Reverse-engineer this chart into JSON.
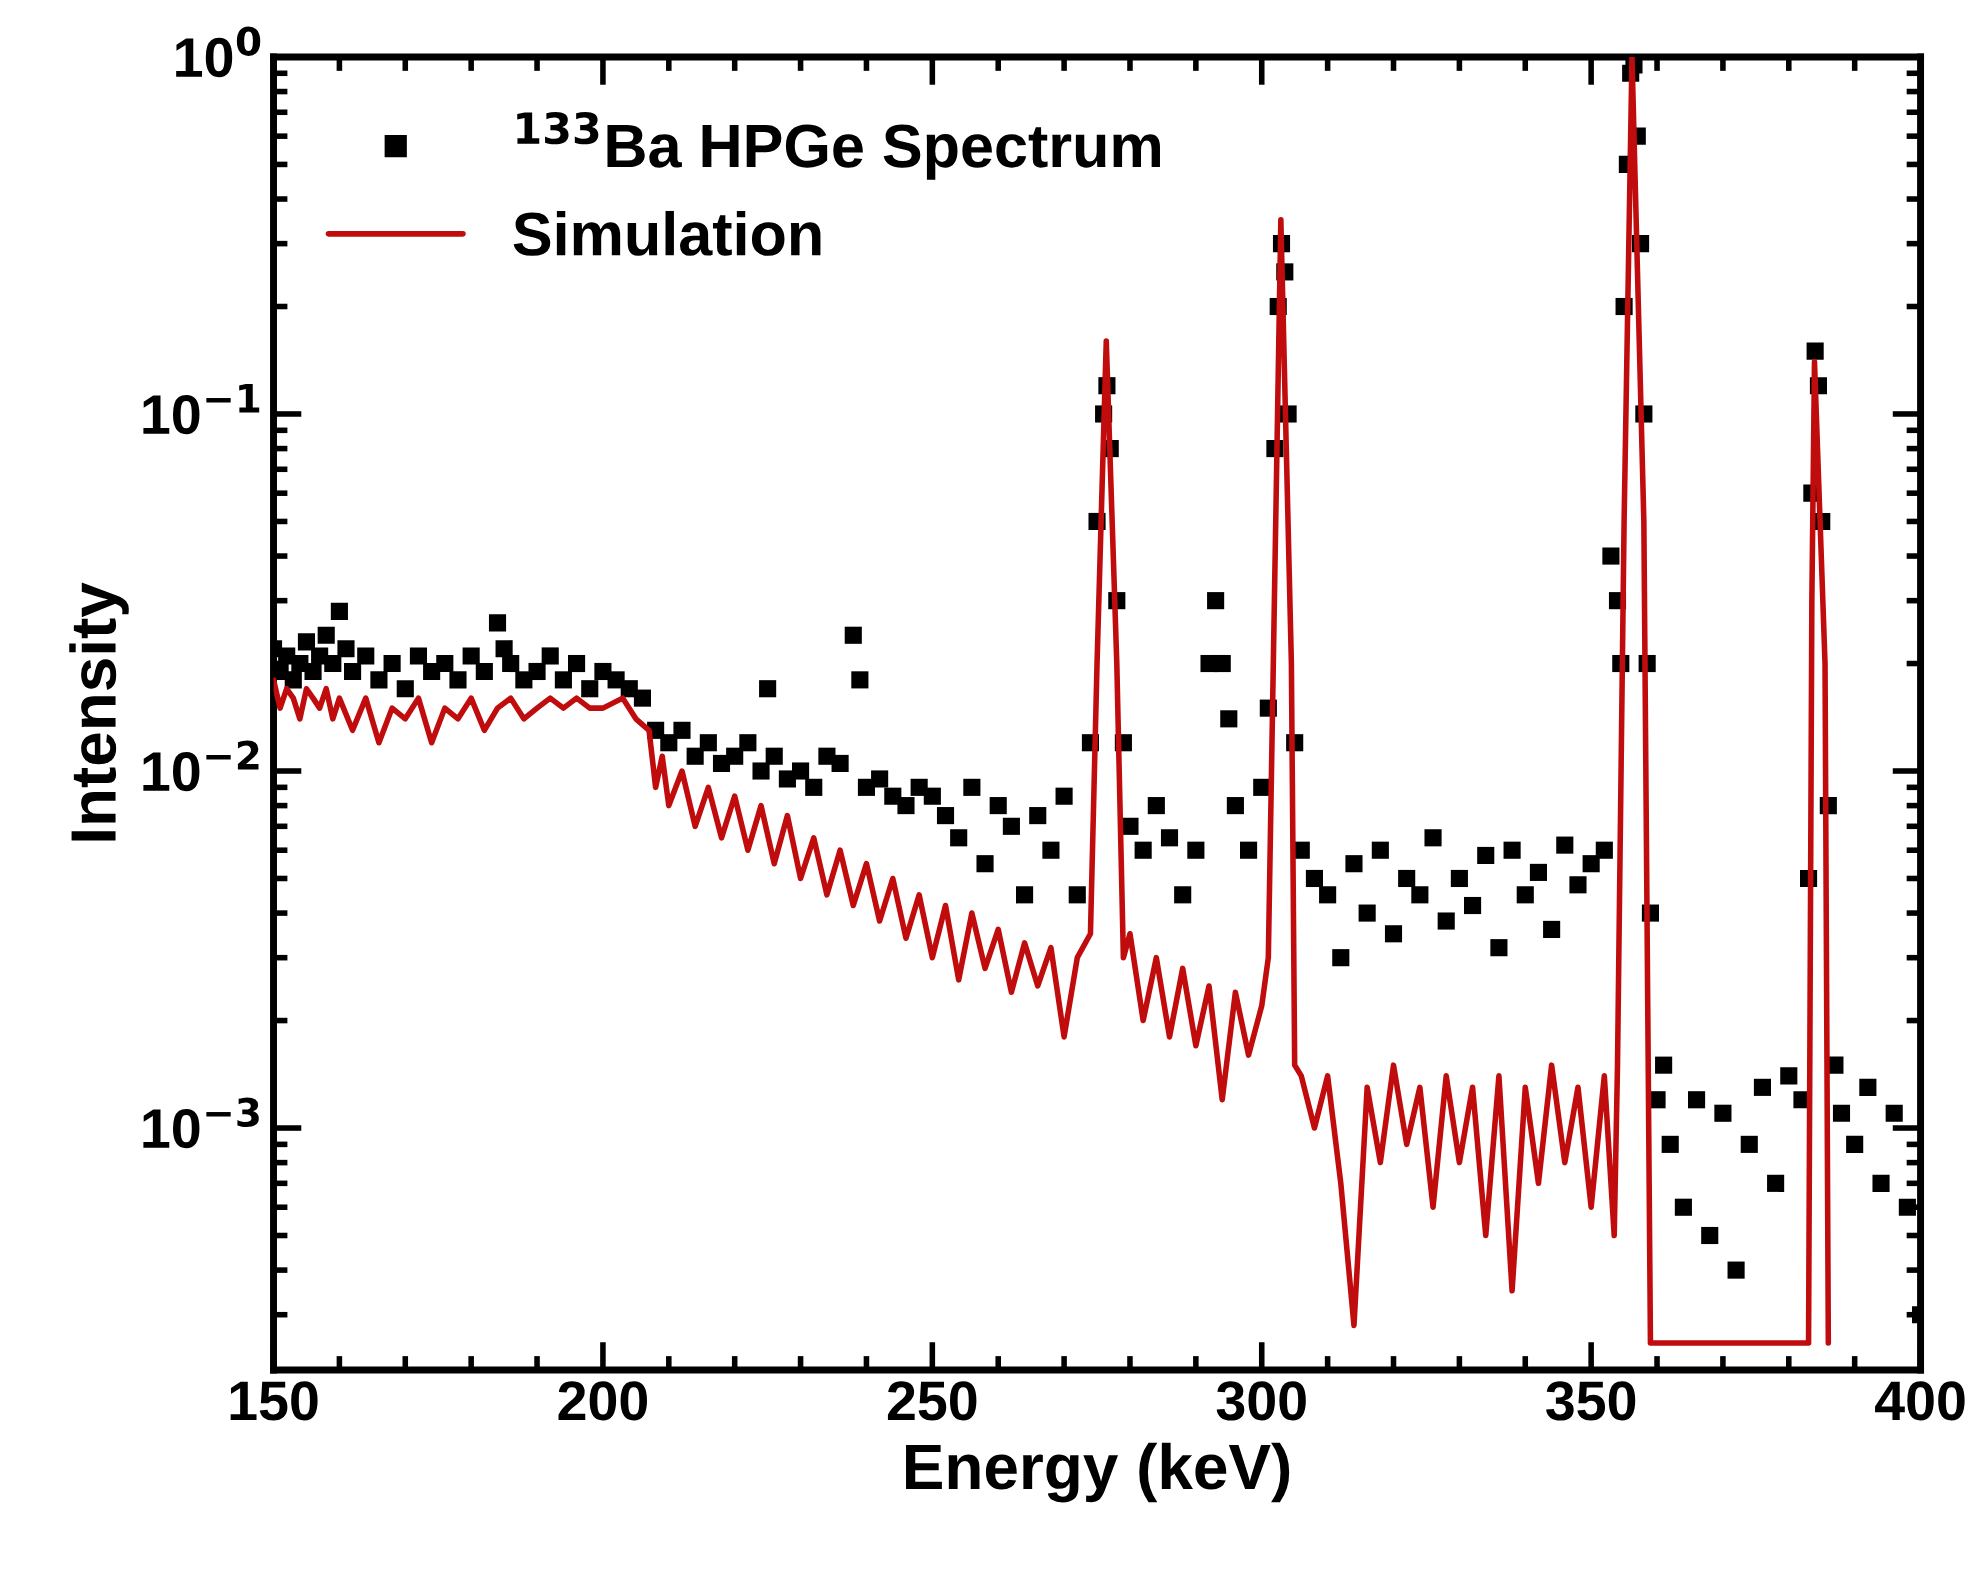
{
  "chart_data": {
    "type": "scatter",
    "xlabel": "Energy (keV)",
    "ylabel": "Intensity",
    "log": "y",
    "legend": "top left",
    "grid": false,
    "xlim": [
      150,
      400
    ],
    "xticks": [
      150,
      200,
      250,
      300,
      350,
      400
    ],
    "ylim": [
      0.00021,
      1
    ],
    "yticks": [
      {
        "value": 0.001,
        "label": "10$^{−3}$"
      },
      {
        "value": 0.01,
        "label": "10$^{−2}$"
      },
      {
        "value": 0.1,
        "label": "10$^{−1}$"
      },
      {
        "value": 1,
        "label": "10$^{0}$"
      }
    ],
    "series": [
      {
        "name": "$^{133}$Ba HPGe Spectrum",
        "marker": "square",
        "color": "#000000",
        "x": [
          150,
          151,
          152,
          153,
          154,
          155,
          156,
          157,
          158,
          159,
          160,
          161,
          162,
          164,
          166,
          168,
          170,
          172,
          174,
          176,
          178,
          180,
          182,
          184,
          185,
          186,
          188,
          190,
          192,
          194,
          196,
          198,
          200,
          202,
          204,
          206,
          208,
          210,
          212,
          214,
          216,
          218,
          220,
          222,
          224,
          225,
          226,
          228,
          230,
          232,
          234,
          236,
          238,
          239,
          240,
          242,
          244,
          246,
          248,
          250,
          252,
          254,
          256,
          258,
          260,
          262,
          264,
          266,
          268,
          270,
          272,
          274,
          275,
          276,
          276.5,
          277,
          278,
          279,
          280,
          282,
          284,
          286,
          288,
          290,
          292,
          293,
          294,
          295,
          296,
          298,
          300,
          301,
          302,
          302.5,
          303,
          303.5,
          304,
          305,
          306,
          308,
          310,
          312,
          314,
          316,
          318,
          320,
          322,
          324,
          326,
          328,
          330,
          332,
          334,
          336,
          338,
          340,
          342,
          344,
          346,
          348,
          350,
          352,
          353,
          354,
          354.5,
          355,
          355.5,
          356,
          356.5,
          357,
          357.5,
          358,
          358.5,
          359,
          360,
          361,
          362,
          364,
          366,
          368,
          370,
          372,
          374,
          376,
          378,
          380,
          382,
          383,
          383.5,
          384,
          384.5,
          385,
          386,
          387,
          388,
          390,
          392,
          394,
          396,
          398,
          400
        ],
        "values": [
          0.022,
          0.019,
          0.021,
          0.018,
          0.02,
          0.023,
          0.019,
          0.021,
          0.024,
          0.02,
          0.028,
          0.022,
          0.019,
          0.021,
          0.018,
          0.02,
          0.017,
          0.021,
          0.019,
          0.02,
          0.018,
          0.021,
          0.019,
          0.026,
          0.022,
          0.02,
          0.018,
          0.019,
          0.021,
          0.018,
          0.02,
          0.017,
          0.019,
          0.018,
          0.017,
          0.016,
          0.013,
          0.012,
          0.013,
          0.011,
          0.012,
          0.0105,
          0.011,
          0.012,
          0.01,
          0.017,
          0.011,
          0.0095,
          0.01,
          0.009,
          0.011,
          0.0105,
          0.024,
          0.018,
          0.009,
          0.0095,
          0.0085,
          0.008,
          0.009,
          0.0085,
          0.0075,
          0.0065,
          0.009,
          0.0055,
          0.008,
          0.007,
          0.0045,
          0.0075,
          0.006,
          0.0085,
          0.0045,
          0.012,
          0.05,
          0.1,
          0.12,
          0.08,
          0.03,
          0.012,
          0.007,
          0.006,
          0.008,
          0.0065,
          0.0045,
          0.006,
          0.02,
          0.03,
          0.02,
          0.014,
          0.008,
          0.006,
          0.009,
          0.015,
          0.08,
          0.2,
          0.3,
          0.25,
          0.1,
          0.012,
          0.006,
          0.005,
          0.0045,
          0.003,
          0.0055,
          0.004,
          0.006,
          0.0035,
          0.005,
          0.0045,
          0.0065,
          0.0038,
          0.005,
          0.0042,
          0.0058,
          0.0032,
          0.006,
          0.0045,
          0.0052,
          0.0036,
          0.0062,
          0.0048,
          0.0055,
          0.006,
          0.04,
          0.03,
          0.02,
          0.2,
          0.5,
          0.9,
          0.95,
          0.6,
          0.3,
          0.1,
          0.02,
          0.004,
          0.0012,
          0.0015,
          0.0009,
          0.0006,
          0.0012,
          0.0005,
          0.0011,
          0.0004,
          0.0009,
          0.0013,
          0.0007,
          0.0014,
          0.0012,
          0.005,
          0.06,
          0.15,
          0.12,
          0.05,
          0.008,
          0.0015,
          0.0011,
          0.0009,
          0.0013,
          0.0007,
          0.0011,
          0.0006,
          0.0003
        ]
      },
      {
        "name": "Simulation",
        "type": "line",
        "marker": "none",
        "line_style": "solid",
        "color": "#c00c0c",
        "x": [
          150,
          151,
          152,
          153,
          154,
          155,
          156,
          157,
          158,
          159,
          160,
          162,
          164,
          166,
          168,
          170,
          172,
          174,
          176,
          178,
          180,
          182,
          184,
          186,
          188,
          190,
          192,
          194,
          196,
          198,
          200,
          203,
          205,
          207,
          208,
          209,
          210,
          212,
          214,
          216,
          218,
          220,
          222,
          224,
          226,
          228,
          230,
          232,
          234,
          236,
          238,
          240,
          242,
          244,
          246,
          248,
          250,
          252,
          254,
          256,
          258,
          260,
          262,
          264,
          266,
          268,
          270,
          272,
          274,
          275,
          276.4,
          278,
          279,
          280,
          282,
          284,
          286,
          288,
          290,
          292,
          294,
          296,
          298,
          300,
          301,
          302.9,
          304.5,
          305,
          306,
          308,
          310,
          312,
          314,
          316,
          318,
          320,
          322,
          324,
          326,
          328,
          330,
          332,
          334,
          336,
          338,
          340,
          342,
          344,
          346,
          348,
          350,
          352,
          353.5,
          354,
          355,
          356.2,
          358,
          359,
          383,
          383.5,
          383.9,
          385.5,
          386
        ],
        "values": [
          0.018,
          0.015,
          0.017,
          0.016,
          0.014,
          0.017,
          0.016,
          0.015,
          0.017,
          0.014,
          0.016,
          0.013,
          0.016,
          0.012,
          0.015,
          0.014,
          0.016,
          0.012,
          0.015,
          0.014,
          0.016,
          0.013,
          0.015,
          0.016,
          0.014,
          0.015,
          0.016,
          0.015,
          0.016,
          0.015,
          0.015,
          0.016,
          0.014,
          0.013,
          0.009,
          0.011,
          0.008,
          0.01,
          0.007,
          0.009,
          0.0065,
          0.0085,
          0.006,
          0.008,
          0.0055,
          0.0075,
          0.005,
          0.0065,
          0.0045,
          0.006,
          0.0042,
          0.0055,
          0.0038,
          0.005,
          0.0034,
          0.0045,
          0.003,
          0.0042,
          0.0026,
          0.004,
          0.0028,
          0.0036,
          0.0024,
          0.0033,
          0.0025,
          0.0032,
          0.0018,
          0.003,
          0.0035,
          0.02,
          0.16,
          0.02,
          0.003,
          0.0035,
          0.002,
          0.003,
          0.0018,
          0.0028,
          0.0017,
          0.0025,
          0.0012,
          0.0024,
          0.0016,
          0.0022,
          0.003,
          0.35,
          0.02,
          0.0015,
          0.0014,
          0.001,
          0.0014,
          0.0007,
          0.00028,
          0.0013,
          0.0008,
          0.0015,
          0.0009,
          0.0013,
          0.0006,
          0.0014,
          0.0008,
          0.0013,
          0.0005,
          0.0014,
          0.00035,
          0.0013,
          0.0007,
          0.0015,
          0.0008,
          0.0013,
          0.0006,
          0.0014,
          0.0005,
          0.0015,
          0.05,
          1.0,
          0.05,
          0.00025,
          0.00025,
          0.03,
          0.14,
          0.02,
          0.00025
        ]
      }
    ]
  }
}
